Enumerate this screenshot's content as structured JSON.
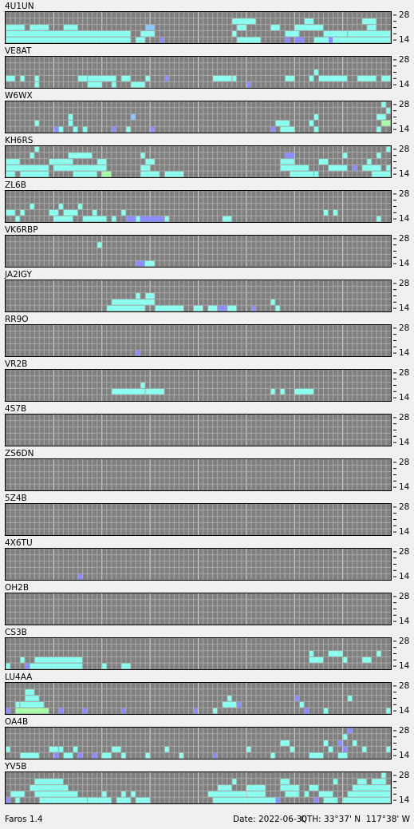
{
  "stations": [
    {
      "call": "4U1UN",
      "runs": [
        [
          0,
          3,
          2,
          3
        ],
        [
          5,
          8,
          2,
          3
        ],
        [
          12,
          14,
          2,
          3
        ],
        [
          29,
          30,
          2,
          2
        ],
        [
          0,
          25,
          3,
          3
        ],
        [
          28,
          30,
          3,
          3
        ],
        [
          0,
          25,
          4,
          3
        ],
        [
          27,
          28,
          4,
          3
        ],
        [
          32,
          32,
          4,
          1
        ],
        [
          47,
          47,
          3,
          3
        ],
        [
          48,
          52,
          4,
          3
        ],
        [
          48,
          49,
          2,
          3
        ],
        [
          47,
          51,
          1,
          3
        ],
        [
          55,
          56,
          2,
          3
        ],
        [
          58,
          60,
          3,
          3
        ],
        [
          60,
          65,
          2,
          3
        ],
        [
          62,
          63,
          1,
          3
        ],
        [
          66,
          70,
          3,
          3
        ],
        [
          64,
          79,
          4,
          3
        ],
        [
          71,
          79,
          3,
          3
        ],
        [
          75,
          76,
          2,
          3
        ],
        [
          74,
          76,
          1,
          3
        ],
        [
          58,
          58,
          4,
          1
        ],
        [
          67,
          67,
          4,
          1
        ],
        [
          60,
          61,
          4,
          1
        ]
      ]
    },
    {
      "call": "VE8AT",
      "runs": [
        [
          0,
          1,
          3,
          3
        ],
        [
          3,
          3,
          3,
          3
        ],
        [
          6,
          6,
          3,
          3
        ],
        [
          6,
          6,
          4,
          3
        ],
        [
          15,
          16,
          3,
          3
        ],
        [
          17,
          22,
          3,
          3
        ],
        [
          17,
          19,
          4,
          3
        ],
        [
          22,
          22,
          4,
          3
        ],
        [
          24,
          25,
          3,
          3
        ],
        [
          26,
          28,
          4,
          3
        ],
        [
          29,
          29,
          3,
          3
        ],
        [
          33,
          33,
          3,
          1
        ],
        [
          50,
          50,
          4,
          1
        ],
        [
          43,
          46,
          3,
          3
        ],
        [
          47,
          47,
          3,
          3
        ],
        [
          58,
          59,
          3,
          3
        ],
        [
          63,
          63,
          3,
          3
        ],
        [
          64,
          64,
          2,
          3
        ],
        [
          65,
          70,
          3,
          3
        ],
        [
          73,
          76,
          3,
          3
        ],
        [
          78,
          79,
          3,
          3
        ]
      ]
    },
    {
      "call": "W6WX",
      "runs": [
        [
          13,
          13,
          2,
          3
        ],
        [
          13,
          13,
          3,
          3
        ],
        [
          6,
          6,
          3,
          3
        ],
        [
          10,
          10,
          4,
          1
        ],
        [
          11,
          11,
          4,
          3
        ],
        [
          14,
          14,
          4,
          3
        ],
        [
          16,
          16,
          4,
          3
        ],
        [
          22,
          22,
          4,
          1
        ],
        [
          26,
          26,
          2,
          2
        ],
        [
          25,
          25,
          4,
          3
        ],
        [
          30,
          30,
          4,
          1
        ],
        [
          55,
          55,
          4,
          1
        ],
        [
          56,
          58,
          3,
          3
        ],
        [
          57,
          59,
          4,
          3
        ],
        [
          64,
          64,
          4,
          3
        ],
        [
          64,
          64,
          2,
          3
        ],
        [
          63,
          63,
          3,
          3
        ],
        [
          78,
          78,
          0,
          3
        ],
        [
          79,
          79,
          1,
          3
        ],
        [
          77,
          78,
          2,
          3
        ],
        [
          78,
          79,
          3,
          4
        ],
        [
          77,
          77,
          4,
          3
        ]
      ]
    },
    {
      "call": "KH6RS",
      "runs": [
        [
          0,
          2,
          2,
          3
        ],
        [
          0,
          8,
          3,
          3
        ],
        [
          3,
          8,
          4,
          3
        ],
        [
          5,
          5,
          1,
          3
        ],
        [
          6,
          6,
          0,
          3
        ],
        [
          9,
          13,
          2,
          3
        ],
        [
          10,
          20,
          3,
          3
        ],
        [
          13,
          17,
          1,
          3
        ],
        [
          14,
          18,
          4,
          3
        ],
        [
          19,
          20,
          2,
          3
        ],
        [
          20,
          21,
          4,
          4
        ],
        [
          28,
          28,
          1,
          3
        ],
        [
          28,
          29,
          3,
          3
        ],
        [
          29,
          30,
          2,
          3
        ],
        [
          33,
          36,
          4,
          3
        ],
        [
          57,
          59,
          2,
          3
        ],
        [
          57,
          62,
          3,
          3
        ],
        [
          58,
          59,
          1,
          1
        ],
        [
          59,
          63,
          4,
          3
        ],
        [
          64,
          64,
          4,
          3
        ],
        [
          67,
          70,
          3,
          3
        ],
        [
          65,
          66,
          2,
          3
        ],
        [
          70,
          70,
          1,
          3
        ],
        [
          72,
          72,
          3,
          1
        ],
        [
          74,
          77,
          3,
          3
        ],
        [
          75,
          75,
          2,
          3
        ],
        [
          76,
          79,
          4,
          3
        ],
        [
          77,
          77,
          1,
          3
        ],
        [
          79,
          79,
          0,
          3
        ],
        [
          79,
          79,
          3,
          3
        ],
        [
          0,
          1,
          4,
          3
        ],
        [
          28,
          31,
          4,
          3
        ]
      ]
    },
    {
      "call": "ZL6B",
      "runs": [
        [
          0,
          1,
          3,
          3
        ],
        [
          2,
          2,
          4,
          3
        ],
        [
          3,
          3,
          3,
          3
        ],
        [
          5,
          5,
          2,
          3
        ],
        [
          9,
          10,
          3,
          3
        ],
        [
          10,
          13,
          4,
          3
        ],
        [
          11,
          11,
          2,
          3
        ],
        [
          12,
          14,
          3,
          3
        ],
        [
          15,
          15,
          2,
          3
        ],
        [
          16,
          20,
          4,
          3
        ],
        [
          18,
          18,
          3,
          3
        ],
        [
          22,
          22,
          4,
          3
        ],
        [
          24,
          24,
          3,
          3
        ],
        [
          25,
          32,
          4,
          1
        ],
        [
          27,
          27,
          4,
          3
        ],
        [
          33,
          33,
          4,
          3
        ],
        [
          45,
          46,
          4,
          3
        ],
        [
          66,
          66,
          3,
          3
        ],
        [
          68,
          68,
          3,
          3
        ],
        [
          77,
          77,
          4,
          3
        ]
      ]
    },
    {
      "call": "VK6RBP",
      "runs": [
        [
          19,
          19,
          1,
          3
        ],
        [
          27,
          30,
          4,
          3
        ],
        [
          27,
          28,
          4,
          1
        ]
      ]
    },
    {
      "call": "JA2IGY",
      "runs": [
        [
          21,
          28,
          4,
          3
        ],
        [
          22,
          30,
          3,
          3
        ],
        [
          27,
          27,
          2,
          3
        ],
        [
          29,
          30,
          2,
          3
        ],
        [
          31,
          36,
          4,
          3
        ],
        [
          39,
          40,
          4,
          3
        ],
        [
          42,
          43,
          4,
          3
        ],
        [
          44,
          45,
          4,
          1
        ],
        [
          46,
          47,
          4,
          3
        ],
        [
          51,
          51,
          4,
          1
        ],
        [
          55,
          55,
          3,
          3
        ],
        [
          56,
          56,
          4,
          3
        ]
      ]
    },
    {
      "call": "RR9O",
      "runs": [
        [
          27,
          27,
          4,
          1
        ]
      ]
    },
    {
      "call": "VR2B",
      "runs": [
        [
          22,
          28,
          3,
          3
        ],
        [
          28,
          28,
          2,
          3
        ],
        [
          29,
          32,
          3,
          3
        ],
        [
          55,
          55,
          3,
          3
        ],
        [
          57,
          57,
          3,
          3
        ],
        [
          60,
          63,
          3,
          3
        ]
      ]
    },
    {
      "call": "4S7B",
      "runs": []
    },
    {
      "call": "ZS6DN",
      "runs": []
    },
    {
      "call": "5Z4B",
      "runs": []
    },
    {
      "call": "4X6TU",
      "runs": [
        [
          15,
          15,
          4,
          1
        ]
      ]
    },
    {
      "call": "OH2B",
      "runs": []
    },
    {
      "call": "CS3B",
      "runs": [
        [
          0,
          0,
          4,
          3
        ],
        [
          3,
          3,
          3,
          3
        ],
        [
          4,
          4,
          4,
          1
        ],
        [
          6,
          15,
          3,
          3
        ],
        [
          5,
          15,
          4,
          3
        ],
        [
          20,
          20,
          4,
          3
        ],
        [
          24,
          25,
          4,
          3
        ],
        [
          63,
          63,
          2,
          3
        ],
        [
          63,
          65,
          3,
          3
        ],
        [
          67,
          69,
          2,
          3
        ],
        [
          70,
          70,
          3,
          3
        ],
        [
          74,
          75,
          3,
          3
        ],
        [
          77,
          77,
          2,
          3
        ]
      ]
    },
    {
      "call": "LU4AA",
      "runs": [
        [
          0,
          0,
          4,
          1
        ],
        [
          2,
          2,
          3,
          3
        ],
        [
          4,
          5,
          1,
          3
        ],
        [
          4,
          6,
          2,
          3
        ],
        [
          3,
          7,
          3,
          3
        ],
        [
          2,
          8,
          4,
          4
        ],
        [
          11,
          11,
          4,
          1
        ],
        [
          16,
          16,
          4,
          1
        ],
        [
          24,
          24,
          4,
          1
        ],
        [
          39,
          39,
          4,
          1
        ],
        [
          43,
          43,
          4,
          3
        ],
        [
          46,
          46,
          2,
          3
        ],
        [
          45,
          47,
          3,
          3
        ],
        [
          48,
          48,
          3,
          1
        ],
        [
          60,
          60,
          2,
          1
        ],
        [
          61,
          61,
          3,
          3
        ],
        [
          62,
          62,
          4,
          1
        ],
        [
          66,
          66,
          4,
          3
        ],
        [
          71,
          71,
          2,
          3
        ],
        [
          79,
          79,
          4,
          3
        ]
      ]
    },
    {
      "call": "OA4B",
      "runs": [
        [
          0,
          0,
          3,
          3
        ],
        [
          3,
          6,
          4,
          3
        ],
        [
          9,
          10,
          3,
          3
        ],
        [
          10,
          10,
          4,
          1
        ],
        [
          11,
          11,
          3,
          3
        ],
        [
          12,
          13,
          4,
          3
        ],
        [
          14,
          14,
          3,
          3
        ],
        [
          15,
          15,
          4,
          1
        ],
        [
          18,
          18,
          4,
          1
        ],
        [
          20,
          21,
          4,
          3
        ],
        [
          22,
          23,
          3,
          3
        ],
        [
          24,
          24,
          4,
          3
        ],
        [
          29,
          29,
          4,
          3
        ],
        [
          33,
          33,
          3,
          3
        ],
        [
          36,
          36,
          4,
          3
        ],
        [
          43,
          43,
          4,
          1
        ],
        [
          50,
          50,
          3,
          3
        ],
        [
          55,
          55,
          4,
          3
        ],
        [
          57,
          58,
          2,
          3
        ],
        [
          59,
          59,
          3,
          3
        ],
        [
          63,
          65,
          4,
          3
        ],
        [
          66,
          66,
          2,
          3
        ],
        [
          67,
          67,
          3,
          3
        ],
        [
          69,
          70,
          4,
          3
        ],
        [
          70,
          70,
          1,
          3
        ],
        [
          69,
          69,
          2,
          1
        ],
        [
          71,
          71,
          0,
          1
        ],
        [
          70,
          70,
          3,
          1
        ],
        [
          72,
          72,
          2,
          3
        ],
        [
          74,
          74,
          3,
          3
        ],
        [
          79,
          79,
          3,
          3
        ]
      ]
    },
    {
      "call": "YV5B",
      "runs": [
        [
          1,
          3,
          3,
          3
        ],
        [
          2,
          2,
          4,
          3
        ],
        [
          5,
          12,
          2,
          3
        ],
        [
          6,
          11,
          1,
          3
        ],
        [
          6,
          14,
          3,
          3
        ],
        [
          7,
          16,
          4,
          3
        ],
        [
          17,
          21,
          4,
          3
        ],
        [
          20,
          20,
          3,
          3
        ],
        [
          23,
          25,
          4,
          3
        ],
        [
          24,
          24,
          3,
          3
        ],
        [
          26,
          26,
          3,
          3
        ],
        [
          27,
          29,
          4,
          3
        ],
        [
          42,
          49,
          3,
          3
        ],
        [
          43,
          56,
          4,
          3
        ],
        [
          44,
          46,
          2,
          3
        ],
        [
          47,
          47,
          1,
          3
        ],
        [
          50,
          53,
          2,
          3
        ],
        [
          50,
          53,
          3,
          3
        ],
        [
          57,
          60,
          2,
          3
        ],
        [
          58,
          60,
          3,
          3
        ],
        [
          57,
          58,
          1,
          3
        ],
        [
          62,
          62,
          3,
          3
        ],
        [
          63,
          64,
          2,
          3
        ],
        [
          65,
          67,
          3,
          3
        ],
        [
          66,
          68,
          4,
          3
        ],
        [
          68,
          68,
          1,
          3
        ],
        [
          70,
          79,
          4,
          3
        ],
        [
          71,
          79,
          3,
          3
        ],
        [
          72,
          79,
          2,
          3
        ],
        [
          73,
          74,
          1,
          3
        ],
        [
          76,
          78,
          1,
          3
        ],
        [
          78,
          78,
          0,
          3
        ],
        [
          0,
          0,
          4,
          1
        ],
        [
          56,
          56,
          4,
          1
        ],
        [
          64,
          64,
          4,
          1
        ]
      ]
    }
  ],
  "band_labels": {
    "top": "28",
    "bottom": "14"
  },
  "level_colors": {
    "1": "#8c8cff",
    "2": "#8cc8ff",
    "3": "#8cfff0",
    "4": "#a8ffa8"
  },
  "footer": {
    "app": "Faros 1.4",
    "date": "Date: 2022-06-30",
    "qth": "QTH: 33°37' N  117°38' W"
  }
}
